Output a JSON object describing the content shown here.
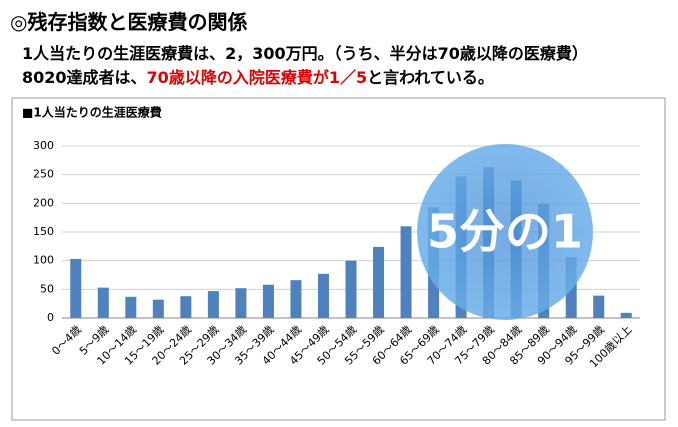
{
  "header": {
    "title": "◎残存指数と医療費の関係",
    "line1": "1人当たりの生涯医療費は、2，300万円。（うち、半分は70歳以降の医療費）",
    "line2": [
      "8020達成者は、",
      "70歳以降の入院医療費が1／5",
      "と言われている。"
    ]
  },
  "chart_data": {
    "type": "bar",
    "title": "■1人当たりの生涯医療費",
    "categories": [
      "0～4歳",
      "5～9歳",
      "10～14歳",
      "15～19歳",
      "20～24歳",
      "25～29歳",
      "30～34歳",
      "35～39歳",
      "40～44歳",
      "45～49歳",
      "50～54歳",
      "55～59歳",
      "60～64歳",
      "65～69歳",
      "70～74歳",
      "75～79歳",
      "80～84歳",
      "85～89歳",
      "90～94歳",
      "95～99歳",
      "100歳以上"
    ],
    "values": [
      103,
      53,
      37,
      32,
      38,
      47,
      52,
      58,
      66,
      77,
      100,
      124,
      160,
      193,
      247,
      263,
      240,
      199,
      106,
      39,
      9
    ],
    "color": "#4f81bd",
    "ylim": [
      0,
      300
    ],
    "yticks": [
      0,
      50,
      100,
      150,
      200,
      250,
      300
    ],
    "grid": true,
    "annotation": "5分の1"
  }
}
